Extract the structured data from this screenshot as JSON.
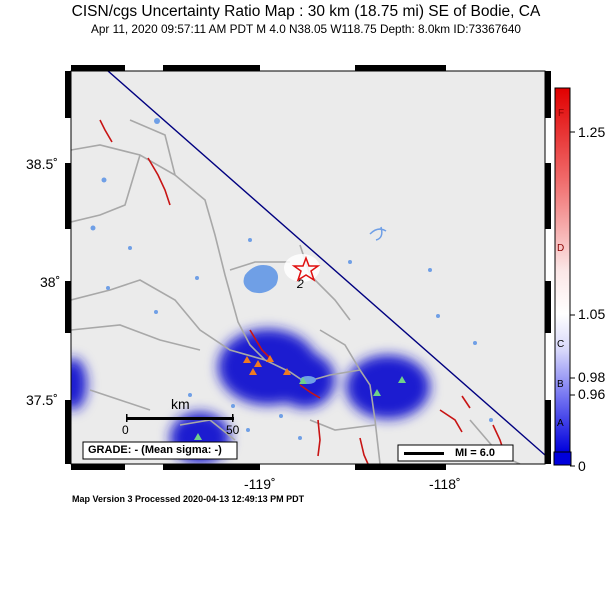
{
  "header": {
    "title": "CISN/cgs Uncertainty Ratio Map : 30 km (18.75 mi) SE of Bodie, CA",
    "subtitle": "Apr 11, 2020 09:57:11 AM PDT   M 4.0   N38.05 W118.75   Depth: 8.0km   ID:73367640"
  },
  "map": {
    "lat_labels": [
      "38.5˚",
      "38˚",
      "37.5˚"
    ],
    "lon_labels": [
      "-119˚",
      "-118˚"
    ],
    "scale_bar": {
      "unit": "km",
      "start": "0",
      "end": "50"
    },
    "grade_box": "GRADE: - (Mean sigma: -)",
    "mi_legend": "MI = 6.0",
    "station_symbol_label": "2",
    "colors": {
      "land": "#ebebeb",
      "water": "#6f9fe6",
      "roads": "#a8a8a8",
      "faults": "#c81414",
      "uncertainty": "#1f1fd0",
      "epicenter": "#e01010"
    }
  },
  "colorbar": {
    "letters": [
      "F",
      "D",
      "C",
      "B",
      "A"
    ],
    "values": [
      "1.25",
      "1.05",
      "0.98",
      "0.96",
      "0"
    ]
  },
  "footer": "Map Version 3 Processed 2020-04-13 12:49:13 PM PDT"
}
